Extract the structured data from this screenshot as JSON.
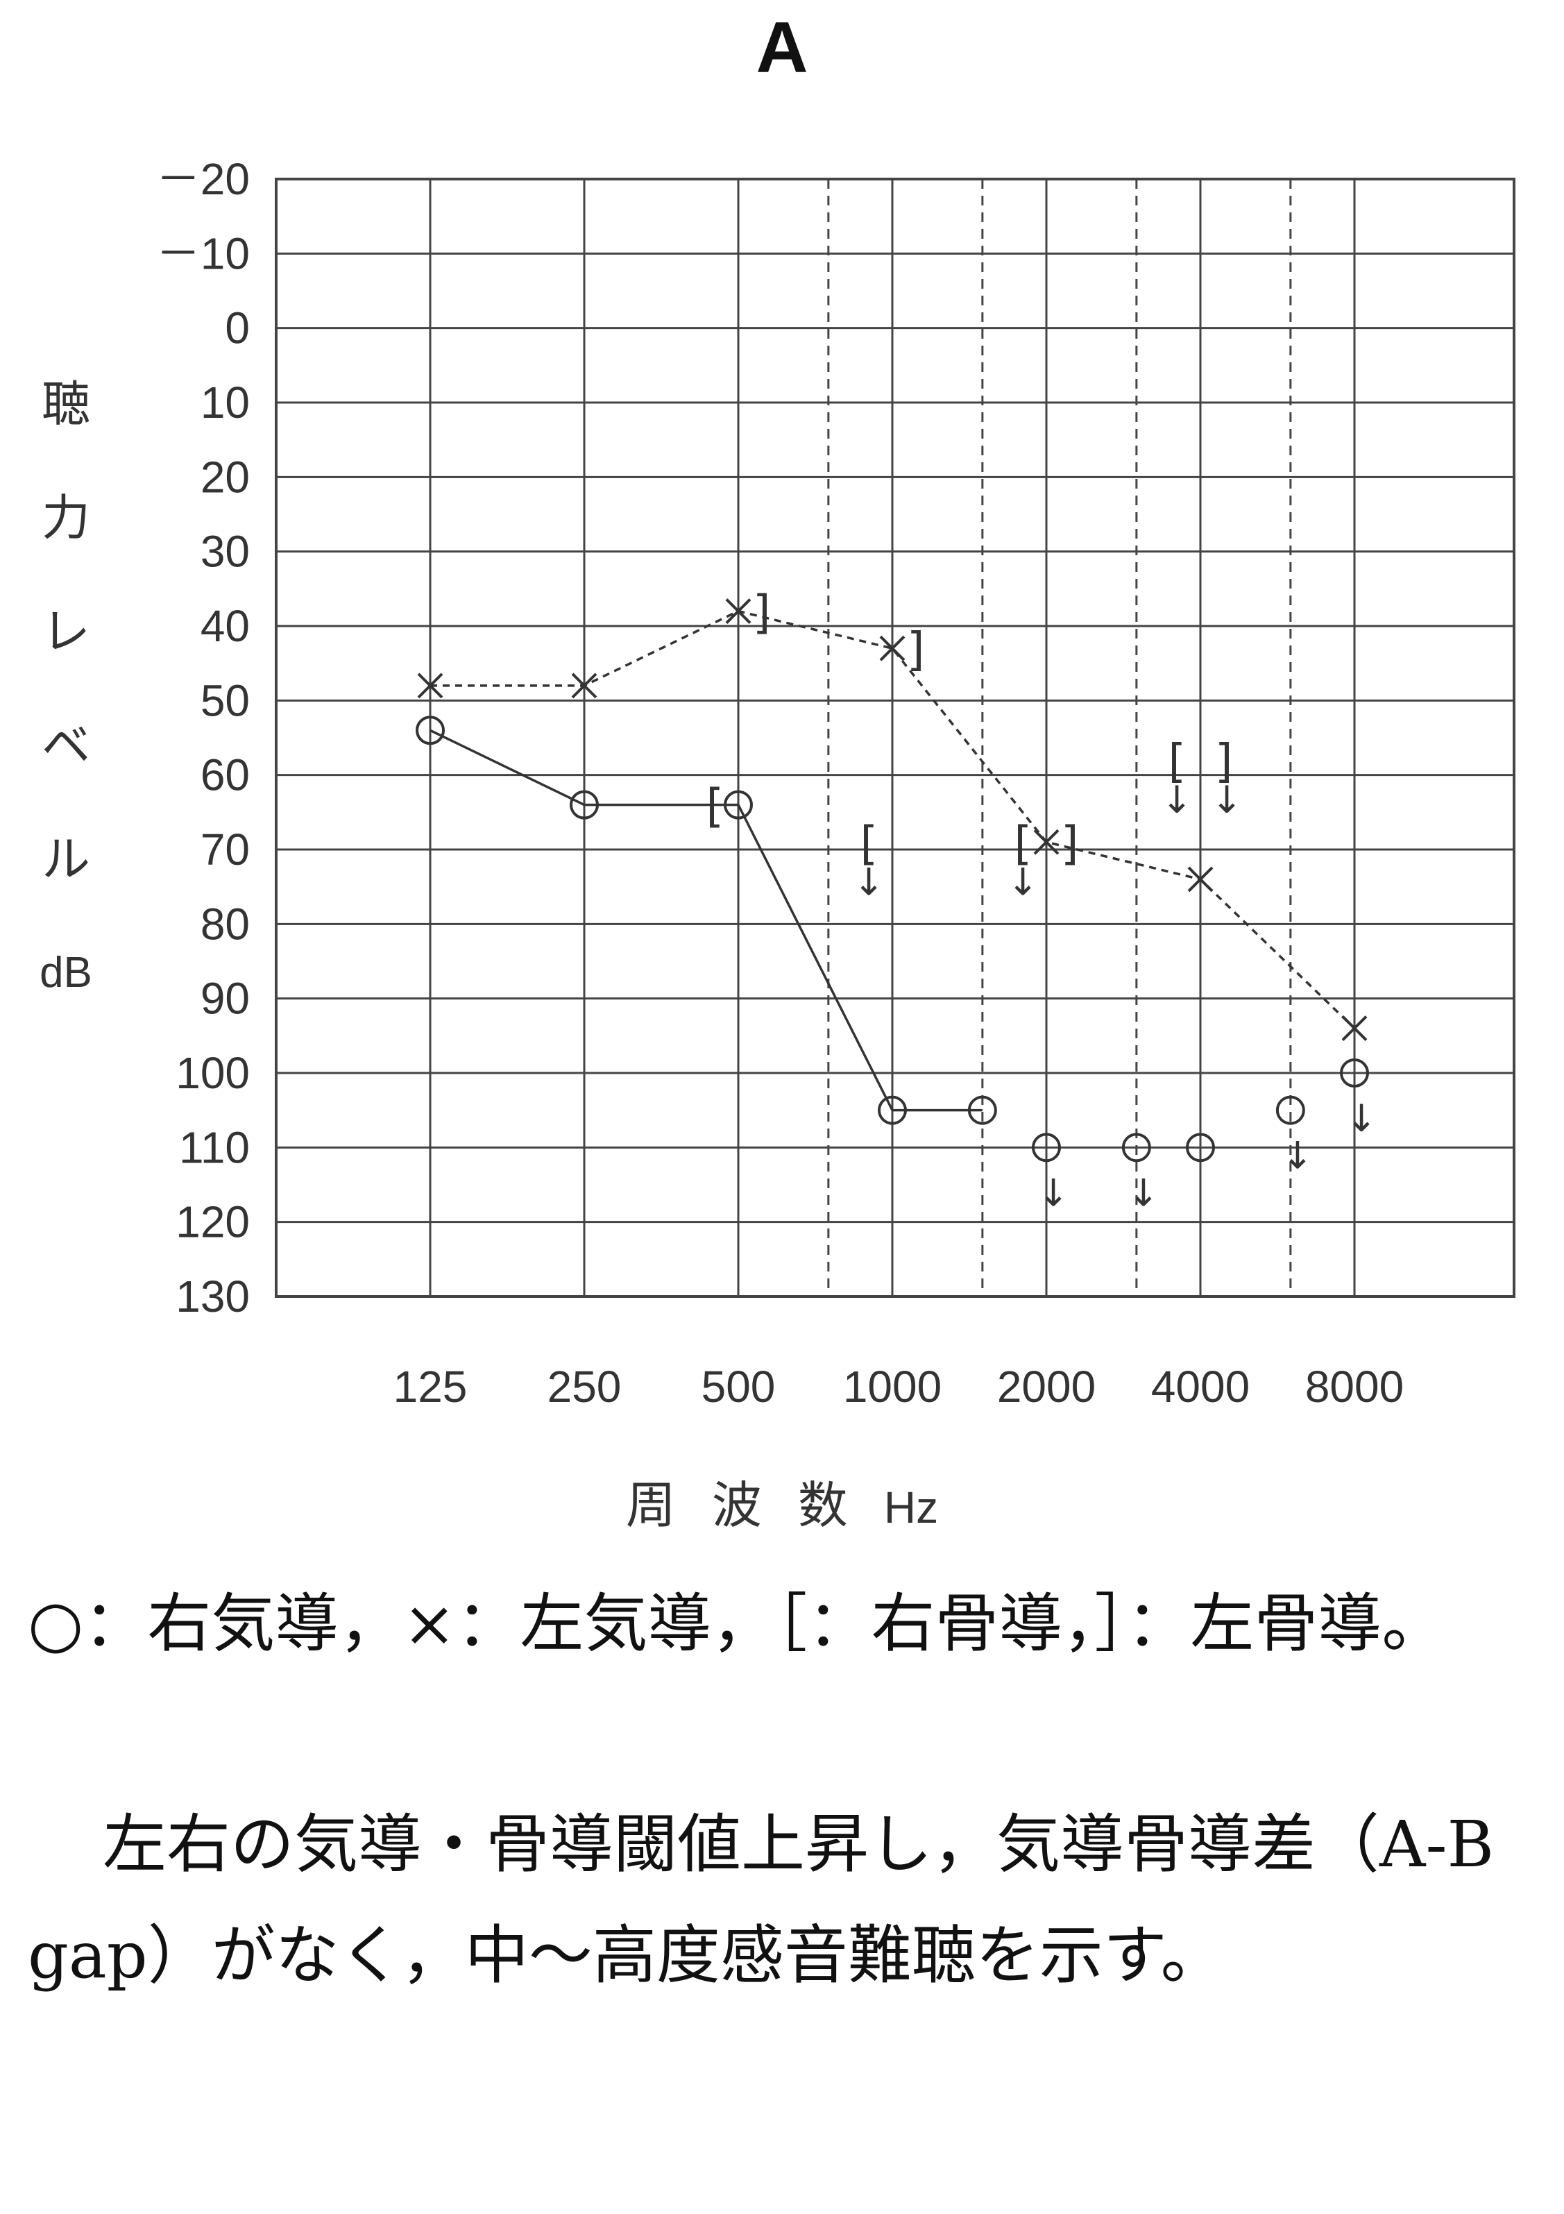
{
  "panel_label": "A",
  "chart_data": {
    "type": "line",
    "title": "",
    "xlabel": "周 波 数 Hz",
    "xlabel_parts": [
      "周",
      "波",
      "数"
    ],
    "xlabel_unit": "Hz",
    "ylabel_chars": [
      "聴",
      "力",
      "レ",
      "ベ",
      "ル"
    ],
    "ylabel_unit": "dB",
    "categories": [
      "125",
      "250",
      "500",
      "1000",
      "2000",
      "4000",
      "8000"
    ],
    "y_ticks": [
      "－20",
      "－10",
      "0",
      "10",
      "20",
      "30",
      "40",
      "50",
      "60",
      "70",
      "80",
      "90",
      "100",
      "110",
      "120",
      "130"
    ],
    "ylim": [
      -20,
      130
    ],
    "y_inverted": true,
    "grid": true,
    "half_octaves": [
      750,
      1500,
      3000,
      6000
    ],
    "series": [
      {
        "name": "○：右気導",
        "symbol": "circle",
        "line": "solid",
        "points": [
          {
            "hz": 125,
            "db": 54,
            "scale_out": false
          },
          {
            "hz": 250,
            "db": 64,
            "scale_out": false
          },
          {
            "hz": 500,
            "db": 64,
            "scale_out": false
          },
          {
            "hz": 1000,
            "db": 105,
            "scale_out": false
          },
          {
            "hz": 1500,
            "db": 105,
            "scale_out": false
          },
          {
            "hz": 2000,
            "db": 110,
            "scale_out": true
          },
          {
            "hz": 3000,
            "db": 110,
            "scale_out": true
          },
          {
            "hz": 4000,
            "db": 110,
            "scale_out": false
          },
          {
            "hz": 6000,
            "db": 105,
            "scale_out": true
          },
          {
            "hz": 8000,
            "db": 100,
            "scale_out": true
          }
        ],
        "connected_through_hz": 1500
      },
      {
        "name": "×：左気導",
        "symbol": "cross",
        "line": "dashed",
        "points": [
          {
            "hz": 125,
            "db": 48,
            "scale_out": false
          },
          {
            "hz": 250,
            "db": 48,
            "scale_out": false
          },
          {
            "hz": 500,
            "db": 38,
            "scale_out": false
          },
          {
            "hz": 1000,
            "db": 43,
            "scale_out": false
          },
          {
            "hz": 2000,
            "db": 69,
            "scale_out": false
          },
          {
            "hz": 4000,
            "db": 74,
            "scale_out": false
          },
          {
            "hz": 8000,
            "db": 94,
            "scale_out": false
          }
        ],
        "connected_through_hz": 8000
      },
      {
        "name": "［：右骨導",
        "symbol": "[",
        "points": [
          {
            "hz": 500,
            "db": 64,
            "scale_out": false
          },
          {
            "hz": 1000,
            "db": 69,
            "scale_out": true
          },
          {
            "hz": 2000,
            "db": 69,
            "scale_out": true
          },
          {
            "hz": 4000,
            "db": 58,
            "scale_out": true
          }
        ]
      },
      {
        "name": "］：左骨導",
        "symbol": "]",
        "points": [
          {
            "hz": 500,
            "db": 38,
            "scale_out": false
          },
          {
            "hz": 1000,
            "db": 43,
            "scale_out": false
          },
          {
            "hz": 2000,
            "db": 69,
            "scale_out": false
          },
          {
            "hz": 4000,
            "db": 58,
            "scale_out": true
          }
        ]
      }
    ]
  },
  "legend_text": "○：右気導，×：左気導，［：右骨導，］：左骨導。",
  "description_text": "左右の気導・骨導閾値上昇し，気導骨導差（A-B gap）がなく，中～高度感音難聴を示す。"
}
